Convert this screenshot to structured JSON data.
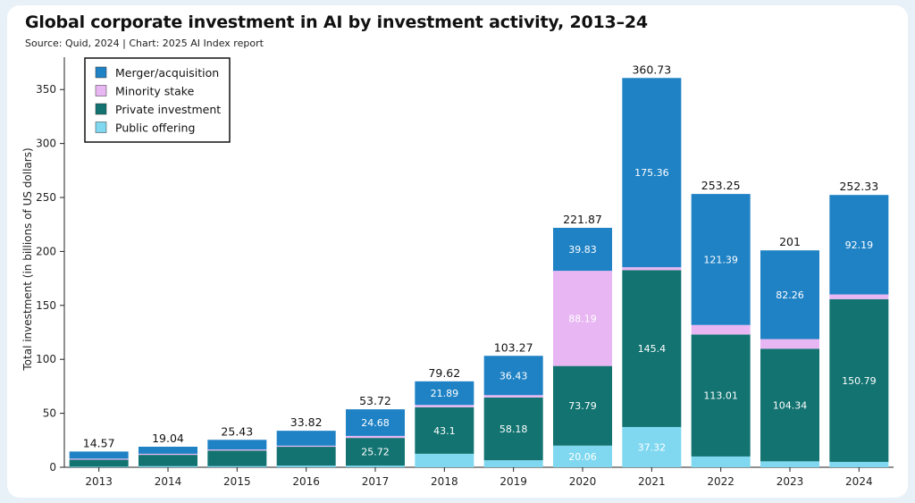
{
  "title": "Global corporate investment in AI by investment activity, 2013–24",
  "subtitle": "Source: Quid, 2024 | Chart: 2025 AI Index report",
  "chart_data": {
    "type": "bar",
    "stacked": true,
    "categories": [
      "2013",
      "2014",
      "2015",
      "2016",
      "2017",
      "2018",
      "2019",
      "2020",
      "2021",
      "2022",
      "2023",
      "2024"
    ],
    "series": [
      {
        "name": "Public offering",
        "color": "#7fd8f0",
        "values": [
          0.5,
          1.0,
          1.0,
          1.5,
          1.5,
          12.5,
          6.5,
          20.06,
          37.32,
          10.0,
          5.5,
          5.0
        ],
        "labels": [
          "",
          "",
          "",
          "",
          "",
          "",
          "",
          "20.06",
          "37.32",
          "",
          "",
          ""
        ]
      },
      {
        "name": "Private investment",
        "color": "#127371",
        "values": [
          6.5,
          10.5,
          14.5,
          17.5,
          25.72,
          43.1,
          58.18,
          73.79,
          145.4,
          113.01,
          104.34,
          150.79
        ],
        "labels": [
          "",
          "",
          "",
          "",
          "25.72",
          "43.1",
          "58.18",
          "73.79",
          "145.4",
          "113.01",
          "104.34",
          "150.79"
        ]
      },
      {
        "name": "Minority stake",
        "color": "#e8b6f3",
        "values": [
          1.0,
          1.0,
          1.0,
          1.0,
          1.82,
          2.13,
          2.16,
          88.19,
          2.65,
          8.85,
          8.9,
          4.35
        ],
        "labels": [
          "",
          "",
          "",
          "",
          "",
          "",
          "",
          "88.19",
          "",
          "",
          "",
          ""
        ]
      },
      {
        "name": "Merger/acquisition",
        "color": "#1f82c5",
        "values": [
          6.57,
          6.54,
          8.93,
          13.82,
          24.68,
          21.89,
          36.43,
          39.83,
          175.36,
          121.39,
          82.26,
          92.19
        ],
        "labels": [
          "",
          "",
          "",
          "",
          "24.68",
          "21.89",
          "36.43",
          "39.83",
          "175.36",
          "121.39",
          "82.26",
          "92.19"
        ]
      }
    ],
    "totals": [
      "14.57",
      "19.04",
      "25.43",
      "33.82",
      "53.72",
      "79.62",
      "103.27",
      "221.87",
      "360.73",
      "253.25",
      "201",
      "252.33"
    ],
    "legend_order": [
      "Merger/acquisition",
      "Minority stake",
      "Private investment",
      "Public offering"
    ],
    "legend_position": "top-left",
    "ylabel": "Total investment (in billions of US dollars)",
    "xlabel": "",
    "ylim": [
      0,
      380
    ],
    "yticks": [
      0,
      50,
      100,
      150,
      200,
      250,
      300,
      350
    ],
    "grid": false
  }
}
